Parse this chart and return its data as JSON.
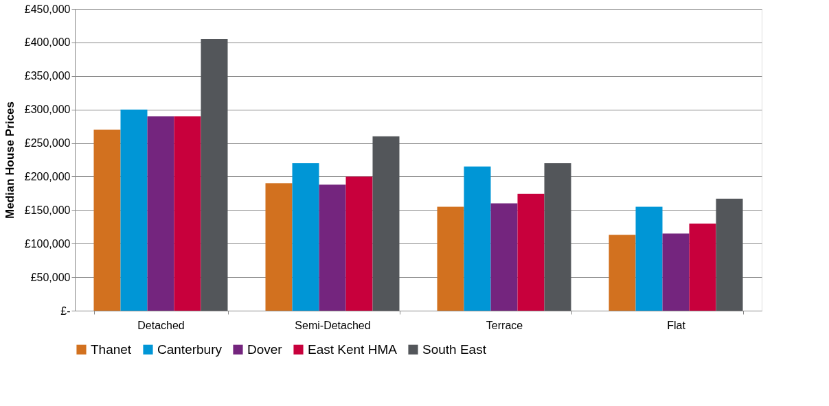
{
  "chart_data": {
    "type": "bar",
    "ylabel": "Median House Prices",
    "categories": [
      "Detached",
      "Semi-Detached",
      "Terrace",
      "Flat"
    ],
    "series": [
      {
        "name": "Thanet",
        "color": "#d2711f",
        "values": [
          270000,
          190000,
          155000,
          113000
        ]
      },
      {
        "name": "Canterbury",
        "color": "#0096d6",
        "values": [
          300000,
          220000,
          215000,
          155000
        ]
      },
      {
        "name": "Dover",
        "color": "#74257e",
        "values": [
          290000,
          188000,
          160000,
          115000
        ]
      },
      {
        "name": "East Kent HMA",
        "color": "#c8003c",
        "values": [
          290000,
          200000,
          174000,
          130000
        ]
      },
      {
        "name": "South East",
        "color": "#53565a",
        "values": [
          405000,
          260000,
          220000,
          167000
        ]
      }
    ],
    "ylim": [
      0,
      450000
    ],
    "yticks": [
      {
        "value": 0,
        "label": "£-"
      },
      {
        "value": 50000,
        "label": "£50,000"
      },
      {
        "value": 100000,
        "label": "£100,000"
      },
      {
        "value": 150000,
        "label": "£150,000"
      },
      {
        "value": 200000,
        "label": "£200,000"
      },
      {
        "value": 250000,
        "label": "£250,000"
      },
      {
        "value": 300000,
        "label": "£300,000"
      },
      {
        "value": 350000,
        "label": "£350,000"
      },
      {
        "value": 400000,
        "label": "£400,000"
      },
      {
        "value": 450000,
        "label": "£450,000"
      }
    ],
    "grid": "y",
    "legend": "bottom"
  }
}
